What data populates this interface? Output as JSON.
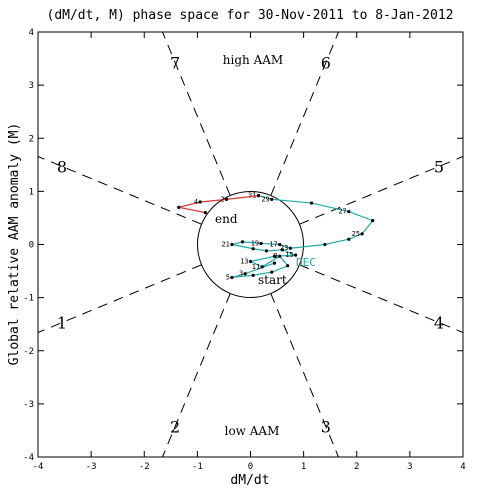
{
  "chart_data": {
    "type": "line",
    "title": "(dM/dt, M) phase space for 30-Nov-2011 to  8-Jan-2012",
    "xlabel": "dM/dt",
    "ylabel": "Global relative AAM anomaly (M)",
    "xlim": [
      -4,
      4
    ],
    "ylim": [
      -4,
      4
    ],
    "xticks": [
      "-4",
      "-3",
      "-2",
      "-1",
      "0",
      "1",
      "2",
      "3",
      "4"
    ],
    "yticks": [
      "-4",
      "-3",
      "-2",
      "-1",
      "0",
      "1",
      "2",
      "3",
      "4"
    ],
    "phase_labels": [
      "1",
      "2",
      "3",
      "4",
      "5",
      "6",
      "7",
      "8"
    ],
    "annotations": {
      "top": "high AAM",
      "bottom": "low AAM",
      "start": "start",
      "end": "end",
      "month": "DEC"
    },
    "colors": {
      "nov": "#22bbbb",
      "dec": "#22aaaa",
      "jan": "#dd3333",
      "axes": "#000000"
    },
    "series": [
      {
        "color": "#22aaaa",
        "points": [
          {
            "x": 0.45,
            "y": -0.35,
            "label": ""
          },
          {
            "x": -0.1,
            "y": -0.55,
            "label": "3"
          },
          {
            "x": -0.35,
            "y": -0.62,
            "label": "5"
          },
          {
            "x": 0.05,
            "y": -0.58,
            "label": ""
          },
          {
            "x": 0.4,
            "y": -0.52,
            "label": ""
          },
          {
            "x": 0.7,
            "y": -0.4,
            "label": ""
          },
          {
            "x": 0.55,
            "y": -0.22,
            "label": "9"
          },
          {
            "x": 0.22,
            "y": -0.42,
            "label": "11"
          },
          {
            "x": 0.0,
            "y": -0.32,
            "label": "13"
          },
          {
            "x": 0.45,
            "y": -0.22,
            "label": ""
          },
          {
            "x": 0.85,
            "y": -0.2,
            "label": "15"
          },
          {
            "x": 0.6,
            "y": -0.1,
            "label": ""
          },
          {
            "x": 0.3,
            "y": -0.12,
            "label": ""
          },
          {
            "x": 0.05,
            "y": -0.08,
            "label": ""
          },
          {
            "x": -0.35,
            "y": 0.0,
            "label": "21"
          },
          {
            "x": -0.15,
            "y": 0.05,
            "label": ""
          },
          {
            "x": 0.2,
            "y": 0.02,
            "label": "19"
          },
          {
            "x": 0.55,
            "y": 0.0,
            "label": "17"
          },
          {
            "x": 0.75,
            "y": -0.07,
            "label": "23"
          },
          {
            "x": 1.4,
            "y": 0.0,
            "label": ""
          },
          {
            "x": 1.85,
            "y": 0.1,
            "label": ""
          },
          {
            "x": 2.1,
            "y": 0.2,
            "label": "25"
          },
          {
            "x": 2.3,
            "y": 0.45,
            "label": ""
          },
          {
            "x": 1.85,
            "y": 0.62,
            "label": "27"
          },
          {
            "x": 1.15,
            "y": 0.78,
            "label": ""
          },
          {
            "x": 0.4,
            "y": 0.85,
            "label": "29"
          },
          {
            "x": 0.15,
            "y": 0.92,
            "label": "31"
          }
        ]
      },
      {
        "color": "#dd3333",
        "points": [
          {
            "x": 0.15,
            "y": 0.92,
            "label": ""
          },
          {
            "x": -0.45,
            "y": 0.85,
            "label": "2"
          },
          {
            "x": -0.95,
            "y": 0.8,
            "label": "4"
          },
          {
            "x": -1.35,
            "y": 0.7,
            "label": ""
          },
          {
            "x": -0.85,
            "y": 0.6,
            "label": "end"
          }
        ]
      }
    ]
  }
}
